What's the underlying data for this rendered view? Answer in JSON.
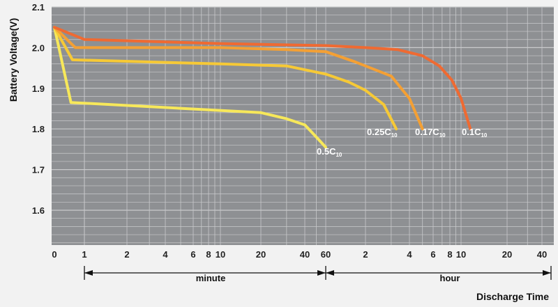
{
  "chart_data": {
    "type": "line",
    "ylabel": "Battery Voltage(V)",
    "xlabel": "Discharge Time",
    "ylim": [
      1.5,
      2.1
    ],
    "y_ticks": [
      "2.1",
      "2.0",
      "1.9",
      "1.8",
      "1.7",
      "1.6"
    ],
    "x_ticks": [
      "0",
      "1",
      "2",
      "4",
      "6",
      "8",
      "10",
      "20",
      "40",
      "60",
      "2",
      "4",
      "6",
      "8",
      "10",
      "20",
      "40"
    ],
    "ranges": [
      {
        "label": "minute"
      },
      {
        "label": "hour"
      }
    ],
    "grid": true,
    "colors": {
      "background": "#8e9093",
      "grid": "#c9cacc",
      "frame": "#f2f2f2"
    },
    "series": [
      {
        "label_main": "0.5C",
        "label_sub": "10",
        "color": "#f7e85a",
        "time_minutes": [
          0,
          0.55,
          20,
          30,
          40,
          50,
          60
        ],
        "voltage": [
          2.05,
          1.865,
          1.84,
          1.825,
          1.81,
          1.78,
          1.755
        ]
      },
      {
        "label_main": "0.25C",
        "label_sub": "10",
        "color": "#f6c936",
        "time_minutes": [
          0,
          0.6,
          10,
          30,
          60,
          90,
          120,
          160,
          195
        ],
        "voltage": [
          2.05,
          1.97,
          1.96,
          1.955,
          1.935,
          1.915,
          1.895,
          1.86,
          1.8
        ]
      },
      {
        "label_main": "0.17C",
        "label_sub": "10",
        "color": "#f4a034",
        "time_minutes": [
          0,
          0.7,
          10,
          30,
          60,
          100,
          180,
          240,
          300
        ],
        "voltage": [
          2.05,
          2.0,
          2.0,
          1.995,
          1.99,
          1.965,
          1.93,
          1.875,
          1.8
        ]
      },
      {
        "label_main": "0.1C",
        "label_sub": "10",
        "color": "#ef6a32",
        "time_minutes": [
          0,
          1,
          10,
          60,
          120,
          200,
          300,
          400,
          500,
          600,
          690
        ],
        "voltage": [
          2.05,
          2.02,
          2.01,
          2.005,
          2.0,
          1.995,
          1.98,
          1.955,
          1.92,
          1.875,
          1.8
        ]
      }
    ]
  }
}
